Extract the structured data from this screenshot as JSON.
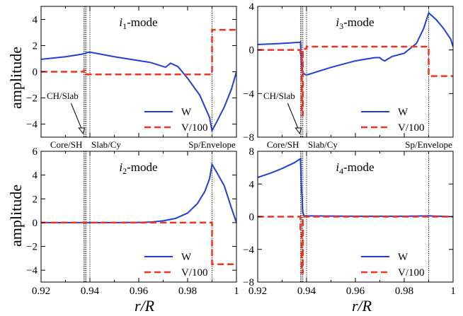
{
  "axis_labels": {
    "x": "r/R",
    "y": "amplitude"
  },
  "region_labels": [
    "Core/SH",
    "Slab/Cy",
    "Sp/Envelope"
  ],
  "annotation": "CH/Slab",
  "colors": {
    "W": "#1f3fd6",
    "V": "#f0321e"
  },
  "chart_data": [
    {
      "type": "line",
      "title": "i1-mode",
      "title_main": "i",
      "title_sub": "1",
      "title_rest": "-mode",
      "xlim": [
        0.92,
        1.0
      ],
      "ylim": [
        -5,
        5
      ],
      "xticks": [
        0.92,
        0.94,
        0.96,
        0.98,
        1.0
      ],
      "yticks": [
        4,
        2,
        0,
        -2,
        -4
      ],
      "ytick_labels": [
        "4",
        "2",
        "0",
        "−2",
        "−4"
      ],
      "vlines": [
        0.9375,
        0.938,
        0.9385,
        0.94,
        0.99
      ],
      "legend_position": "lower-right",
      "annotate_boundary": true,
      "series": [
        {
          "name": "W",
          "style": "solid",
          "x": [
            0.92,
            0.93,
            0.937,
            0.9375,
            0.938,
            0.9385,
            0.94,
            0.95,
            0.96,
            0.965,
            0.97,
            0.971,
            0.972,
            0.973,
            0.976,
            0.98,
            0.985,
            0.989,
            0.99,
            0.992,
            0.995,
            0.998,
            1.0
          ],
          "y": [
            0.95,
            1.15,
            1.35,
            1.4,
            1.38,
            1.45,
            1.5,
            1.15,
            0.85,
            0.7,
            0.4,
            0.35,
            0.5,
            0.65,
            0.4,
            -0.5,
            -1.8,
            -3.5,
            -4.5,
            -3.8,
            -2.7,
            -1.3,
            0.0
          ]
        },
        {
          "name": "V/100",
          "style": "dashed",
          "x": [
            0.92,
            0.9375,
            0.9375,
            0.938,
            0.938,
            0.9385,
            0.9385,
            0.94,
            0.94,
            0.99,
            0.99,
            1.0
          ],
          "y": [
            0.0,
            0.0,
            0.1,
            0.1,
            -0.1,
            -0.1,
            -0.2,
            -0.2,
            -0.2,
            -0.2,
            3.2,
            3.2
          ]
        }
      ]
    },
    {
      "type": "line",
      "title": "i3-mode",
      "title_main": "i",
      "title_sub": "3",
      "title_rest": "-mode",
      "xlim": [
        0.92,
        1.0
      ],
      "ylim": [
        -8,
        4
      ],
      "xticks": [
        0.92,
        0.94,
        0.96,
        0.98,
        1.0
      ],
      "yticks": [
        4,
        0,
        -4,
        -8
      ],
      "ytick_labels": [
        "4",
        "0",
        "−4",
        "−8"
      ],
      "vlines": [
        0.9375,
        0.938,
        0.9385,
        0.94,
        0.99
      ],
      "legend_position": "lower-right",
      "annotate_boundary": true,
      "series": [
        {
          "name": "W",
          "style": "solid",
          "x": [
            0.92,
            0.93,
            0.937,
            0.9375,
            0.938,
            0.9385,
            0.939,
            0.94,
            0.95,
            0.96,
            0.968,
            0.97,
            0.971,
            0.972,
            0.975,
            0.98,
            0.985,
            0.988,
            0.99,
            0.993,
            0.996,
            0.999,
            1.0
          ],
          "y": [
            0.5,
            0.6,
            0.7,
            0.72,
            -1.5,
            -2.0,
            -2.2,
            -2.3,
            -1.6,
            -1.0,
            -0.7,
            -0.7,
            -0.9,
            -1.0,
            -0.6,
            -0.3,
            0.6,
            2.0,
            3.4,
            2.8,
            2.0,
            1.0,
            0.3
          ]
        },
        {
          "name": "V/100",
          "style": "dashed",
          "x": [
            0.92,
            0.9375,
            0.9375,
            0.938,
            0.938,
            0.9385,
            0.9385,
            0.94,
            0.94,
            0.99,
            0.99,
            1.0
          ],
          "y": [
            0.0,
            0.0,
            -0.3,
            -0.3,
            -6.0,
            -6.0,
            0.1,
            0.1,
            0.3,
            0.3,
            -2.4,
            -2.4
          ]
        }
      ]
    },
    {
      "type": "line",
      "title": "i2-mode",
      "title_main": "i",
      "title_sub": "2",
      "title_rest": "-mode",
      "xlim": [
        0.92,
        1.0
      ],
      "ylim": [
        -5,
        6
      ],
      "xticks": [
        0.92,
        0.94,
        0.96,
        0.98,
        1.0
      ],
      "xtick_labels": [
        "0.92",
        "0.94",
        "0.96",
        "0.98",
        "1"
      ],
      "yticks": [
        6,
        4,
        2,
        0,
        -2,
        -4
      ],
      "ytick_labels": [
        "6",
        "4",
        "2",
        "0",
        "−2",
        "−4"
      ],
      "vlines": [
        0.9375,
        0.938,
        0.9385,
        0.94,
        0.99
      ],
      "legend_position": "lower-right",
      "annotate_boundary": false,
      "series": [
        {
          "name": "W",
          "style": "solid",
          "x": [
            0.92,
            0.95,
            0.96,
            0.965,
            0.97,
            0.975,
            0.98,
            0.984,
            0.987,
            0.989,
            0.99,
            0.992,
            0.995,
            0.998,
            1.0
          ],
          "y": [
            0.0,
            0.0,
            0.02,
            0.05,
            0.15,
            0.35,
            0.8,
            1.6,
            2.6,
            3.7,
            4.9,
            4.2,
            3.1,
            1.2,
            0.0
          ]
        },
        {
          "name": "V/100",
          "style": "dashed",
          "x": [
            0.92,
            0.99,
            0.99,
            1.0
          ],
          "y": [
            0.0,
            0.0,
            -3.5,
            -3.5
          ]
        }
      ]
    },
    {
      "type": "line",
      "title": "i4-mode",
      "title_main": "i",
      "title_sub": "4",
      "title_rest": "-mode",
      "xlim": [
        0.92,
        1.0
      ],
      "ylim": [
        -8,
        8
      ],
      "xticks": [
        0.92,
        0.94,
        0.96,
        0.98,
        1.0
      ],
      "xtick_labels": [
        "0.92",
        "0.94",
        "0.96",
        "0.98",
        "1"
      ],
      "yticks": [
        8,
        4,
        0,
        -4,
        -8
      ],
      "ytick_labels": [
        "8",
        "4",
        "0",
        "−4",
        "−8"
      ],
      "vlines": [
        0.9375,
        0.938,
        0.9385,
        0.94,
        0.99
      ],
      "legend_position": "lower-right",
      "annotate_boundary": false,
      "series": [
        {
          "name": "W",
          "style": "solid",
          "x": [
            0.92,
            0.925,
            0.93,
            0.935,
            0.9375,
            0.938,
            0.9385,
            0.939,
            0.94,
            0.96,
            0.98,
            0.99,
            1.0
          ],
          "y": [
            4.8,
            5.3,
            5.9,
            6.6,
            7.1,
            3.0,
            0.5,
            0.1,
            0.1,
            0.05,
            0.05,
            0.1,
            0.0
          ]
        },
        {
          "name": "V/100",
          "style": "dashed",
          "x": [
            0.92,
            0.9375,
            0.9375,
            0.938,
            0.938,
            0.9385,
            0.9385,
            0.94,
            0.94,
            1.0
          ],
          "y": [
            0.0,
            0.0,
            -1.5,
            -1.5,
            -6.9,
            -6.9,
            0.0,
            0.0,
            0.0,
            0.0
          ]
        }
      ]
    }
  ]
}
